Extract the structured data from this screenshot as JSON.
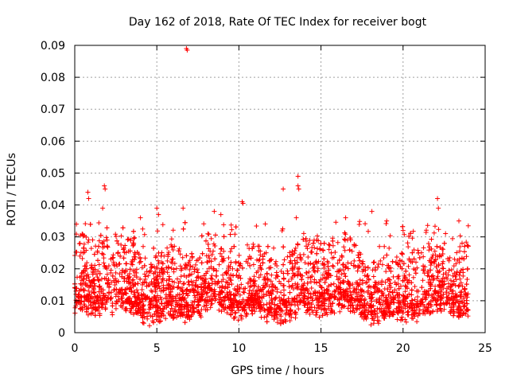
{
  "chart_data": {
    "type": "scatter",
    "title": "Day 162 of 2018, Rate Of TEC Index for receiver bogt",
    "xlabel": "GPS time / hours",
    "ylabel": "ROTI / TECUs",
    "xlim": [
      0,
      25
    ],
    "ylim": [
      0,
      0.09
    ],
    "xticks": [
      0,
      5,
      10,
      15,
      20,
      25
    ],
    "xtick_labels": [
      "0",
      "5",
      "10",
      "15",
      "20",
      "25"
    ],
    "yticks": [
      0,
      0.01,
      0.02,
      0.03,
      0.04,
      0.05,
      0.06,
      0.07,
      0.08,
      0.09
    ],
    "ytick_labels": [
      "0",
      "0.01",
      "0.02",
      "0.03",
      "0.04",
      "0.05",
      "0.06",
      "0.07",
      "0.08",
      "0.09"
    ],
    "grid": true,
    "marker": "plus",
    "color": "#ff0000",
    "series": [
      {
        "name": "ROTI",
        "values_note": "dense scatter; baseline 0.003-0.022 across 0-24 h, notable spikes listed in outliers",
        "x_range": [
          0,
          24
        ],
        "typical_range": [
          0.003,
          0.022
        ],
        "outliers": [
          [
            0.1,
            0.034
          ],
          [
            0.8,
            0.044
          ],
          [
            0.85,
            0.042
          ],
          [
            1.8,
            0.046
          ],
          [
            1.85,
            0.045
          ],
          [
            1.7,
            0.039
          ],
          [
            4.0,
            0.036
          ],
          [
            5.0,
            0.039
          ],
          [
            5.1,
            0.037
          ],
          [
            6.6,
            0.039
          ],
          [
            6.8,
            0.089
          ],
          [
            6.85,
            0.0885
          ],
          [
            8.5,
            0.038
          ],
          [
            8.9,
            0.037
          ],
          [
            10.2,
            0.041
          ],
          [
            10.25,
            0.0405
          ],
          [
            12.7,
            0.045
          ],
          [
            13.6,
            0.049
          ],
          [
            13.6,
            0.046
          ],
          [
            13.65,
            0.045
          ],
          [
            13.5,
            0.036
          ],
          [
            16.5,
            0.036
          ],
          [
            18.1,
            0.038
          ],
          [
            19.0,
            0.035
          ],
          [
            20.0,
            0.032
          ],
          [
            22.1,
            0.042
          ],
          [
            22.15,
            0.039
          ],
          [
            23.4,
            0.035
          ]
        ],
        "seed": 162
      }
    ]
  }
}
